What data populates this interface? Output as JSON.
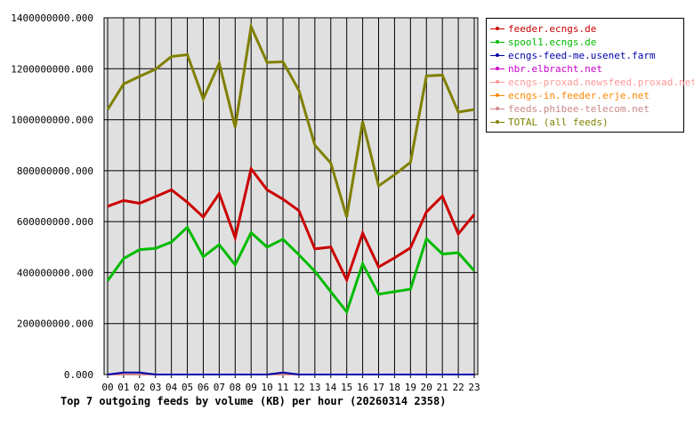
{
  "chart_data": {
    "type": "line",
    "title": "Top 7 outgoing feeds by volume (KB) per hour (20260314 2358)",
    "xlabel": "",
    "ylabel": "",
    "categories": [
      "00",
      "01",
      "02",
      "03",
      "04",
      "05",
      "06",
      "07",
      "08",
      "09",
      "10",
      "11",
      "12",
      "13",
      "14",
      "15",
      "16",
      "17",
      "18",
      "19",
      "20",
      "21",
      "22",
      "23"
    ],
    "ylim": [
      0,
      1400000000
    ],
    "yticks": [
      "0.000",
      "200000000.000",
      "400000000.000",
      "600000000.000",
      "800000000.000",
      "1000000000.000",
      "1200000000.000",
      "1400000000.000"
    ],
    "grid": true,
    "legend_position": "right",
    "series": [
      {
        "name": "feeder.ecngs.de",
        "color": "#cc0000",
        "values": [
          660000000,
          683000000,
          672000000,
          698000000,
          725000000,
          676000000,
          618000000,
          710000000,
          537000000,
          807000000,
          725000000,
          688000000,
          643000000,
          493000000,
          500000000,
          371000000,
          555000000,
          422000000,
          458000000,
          497000000,
          638000000,
          700000000,
          552000000,
          628000000
        ]
      },
      {
        "name": "spool1.ecngs.de",
        "color": "#00bb00",
        "values": [
          368000000,
          455000000,
          490000000,
          495000000,
          520000000,
          578000000,
          462000000,
          510000000,
          430000000,
          557000000,
          500000000,
          531000000,
          470000000,
          405000000,
          325000000,
          246000000,
          435000000,
          315000000,
          325000000,
          335000000,
          533000000,
          473000000,
          478000000,
          407000000
        ]
      },
      {
        "name": "ecngs-feed-me.usenet.farm",
        "color": "#0000aa",
        "values": [
          0,
          8000000,
          8000000,
          0,
          0,
          0,
          0,
          0,
          0,
          0,
          0,
          8000000,
          0,
          0,
          0,
          0,
          0,
          0,
          0,
          0,
          0,
          0,
          0,
          0
        ]
      },
      {
        "name": "nbr.elbracht.net",
        "color": "#cc00cc",
        "values": [
          0,
          0,
          0,
          0,
          0,
          0,
          0,
          0,
          0,
          0,
          0,
          0,
          0,
          0,
          0,
          0,
          0,
          0,
          0,
          0,
          0,
          0,
          0,
          0
        ]
      },
      {
        "name": "ecngs-proxad.newsfeed.proxad.net",
        "color": "#ff9999",
        "values": [
          0,
          0,
          0,
          0,
          0,
          0,
          0,
          0,
          0,
          0,
          0,
          0,
          0,
          0,
          0,
          0,
          0,
          0,
          0,
          0,
          0,
          0,
          0,
          0
        ]
      },
      {
        "name": "ecngs-in.feeder.erje.net",
        "color": "#ff8800",
        "values": [
          0,
          0,
          0,
          0,
          0,
          0,
          0,
          0,
          0,
          0,
          0,
          0,
          0,
          0,
          0,
          0,
          0,
          0,
          0,
          0,
          0,
          0,
          0,
          0
        ]
      },
      {
        "name": "feeds.phibee-telecom.net",
        "color": "#cc8888",
        "values": [
          0,
          0,
          0,
          0,
          0,
          0,
          0,
          0,
          0,
          0,
          0,
          0,
          0,
          0,
          0,
          0,
          0,
          0,
          0,
          0,
          0,
          0,
          0,
          0
        ]
      },
      {
        "name": "TOTAL (all feeds)",
        "color": "#808000",
        "values": [
          1040000000,
          1140000000,
          1170000000,
          1198000000,
          1248000000,
          1255000000,
          1082000000,
          1222000000,
          970000000,
          1365000000,
          1225000000,
          1227000000,
          1115000000,
          900000000,
          830000000,
          618000000,
          993000000,
          740000000,
          784000000,
          833000000,
          1172000000,
          1175000000,
          1030000000,
          1040000000
        ]
      }
    ]
  }
}
